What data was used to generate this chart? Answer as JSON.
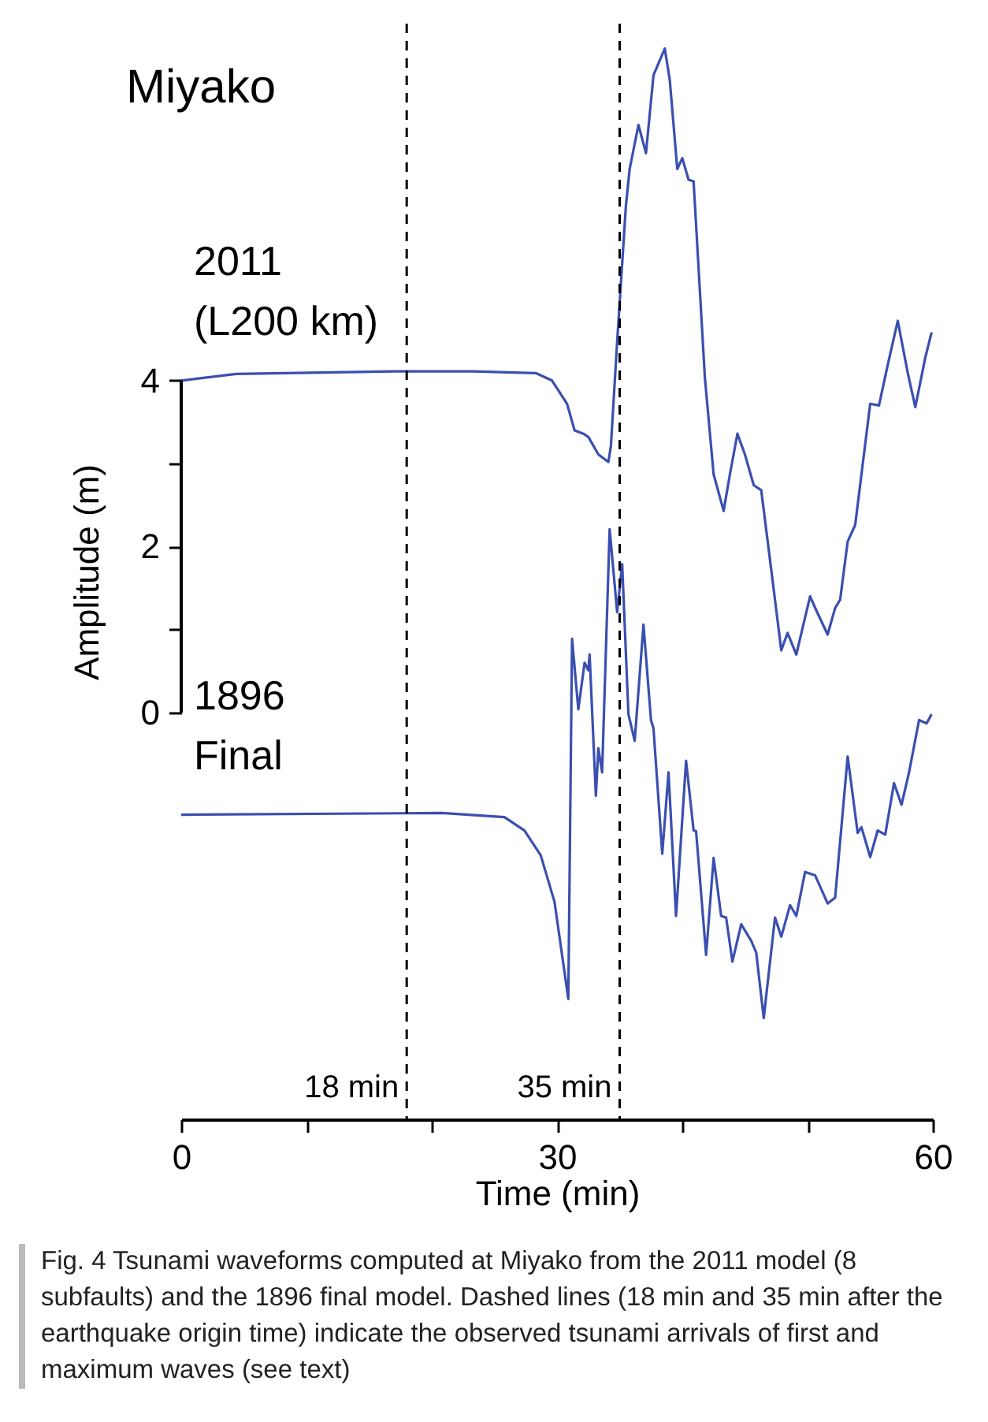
{
  "chart_data": {
    "type": "line",
    "xlabel": "Time (min)",
    "ylabel": "Amplitude (m)",
    "annotations": [
      "Miyako",
      {
        "text": "2011\n(L200 km)",
        "x": 0,
        "y": 4.0
      },
      {
        "text": "1896\nFinal",
        "x": 0,
        "y": -1.23
      },
      "Fig. 4  Tsunami waveforms computed at Miyako from the 2011 model (8 subfaults) and the 1896 final model. Dashed lines (18 min and 35 min after the earthquake origin time) indicate the observed tsunami arrivals of first and maximum waves (see text)"
    ],
    "xlim": [
      0,
      60
    ],
    "xticks": [
      0,
      {
        "value": 10,
        "label": null
      },
      {
        "value": 20,
        "label": null
      },
      30,
      {
        "value": 40,
        "label": null
      },
      {
        "value": 50,
        "label": null
      },
      60
    ],
    "ylim": [
      -4.9,
      8.3
    ],
    "yticks": [
      0,
      {
        "value": 1,
        "label": null
      },
      2,
      {
        "value": 3,
        "label": null
      },
      4
    ],
    "grid": false,
    "line_style": "solid",
    "marker": "none",
    "ref_lines": [
      {
        "axis": "x",
        "value": 18,
        "label": "18 min",
        "color": "#000000",
        "line_style": "dashed"
      },
      {
        "axis": "x",
        "value": 35,
        "label": "35 min",
        "color": "#000000",
        "line_style": "dashed"
      }
    ],
    "series": [
      {
        "color": "#3a4fb0",
        "x": [
          0,
          4.4,
          17.0,
          23.3,
          28.3,
          29.6,
          30.8,
          31.4,
          32.1,
          32.5,
          33.3,
          34.1,
          34.3,
          34.8,
          35.5,
          35.8,
          36.5,
          37.1,
          37.7,
          38.6,
          39.0,
          39.6,
          40.0,
          40.5,
          40.9,
          41.8,
          42.5,
          43.3,
          43.8,
          44.4,
          45.0,
          45.7,
          46.3,
          47.2,
          47.9,
          48.4,
          49.1,
          50.2,
          50.7,
          51.6,
          52.2,
          52.6,
          53.2,
          53.8,
          55.0,
          55.7,
          56.4,
          57.2,
          58.0,
          58.6,
          59.4,
          59.9
        ],
        "values": [
          4.0,
          4.08,
          4.11,
          4.11,
          4.09,
          4.0,
          3.72,
          3.4,
          3.36,
          3.32,
          3.11,
          3.02,
          3.21,
          4.47,
          6.11,
          6.55,
          7.08,
          6.74,
          7.68,
          8.0,
          7.62,
          6.55,
          6.68,
          6.42,
          6.4,
          4.04,
          2.87,
          2.43,
          2.87,
          3.36,
          3.11,
          2.74,
          2.68,
          1.6,
          0.75,
          0.96,
          0.7,
          1.4,
          1.23,
          0.94,
          1.26,
          1.36,
          2.06,
          2.26,
          3.72,
          3.7,
          4.19,
          4.72,
          4.09,
          3.68,
          4.28,
          4.58
        ]
      },
      {
        "color": "#3a4fb0",
        "x": [
          0,
          20.8,
          25.8,
          27.4,
          28.7,
          29.8,
          30.9,
          31.2,
          31.7,
          32.2,
          32.5,
          32.6,
          33.1,
          33.3,
          33.6,
          34.2,
          34.8,
          35.2,
          35.7,
          36.2,
          36.9,
          37.5,
          37.7,
          38.4,
          38.9,
          39.5,
          40.3,
          40.9,
          41.1,
          41.9,
          42.5,
          43.1,
          43.5,
          44.0,
          44.7,
          45.5,
          45.9,
          46.5,
          47.4,
          47.9,
          48.6,
          49.1,
          49.8,
          50.6,
          51.6,
          52.2,
          53.2,
          54.0,
          54.3,
          55.0,
          55.6,
          56.2,
          56.9,
          57.5,
          58.1,
          58.9,
          59.5,
          59.9
        ],
        "values": [
          -1.23,
          -1.21,
          -1.26,
          -1.42,
          -1.72,
          -2.28,
          -3.45,
          0.89,
          0.04,
          0.6,
          0.51,
          0.7,
          -1.0,
          -0.43,
          -0.72,
          2.21,
          1.21,
          1.79,
          -0.02,
          -0.34,
          1.06,
          -0.09,
          -0.19,
          -1.7,
          -0.72,
          -2.45,
          -0.58,
          -1.42,
          -1.43,
          -2.92,
          -1.75,
          -2.45,
          -2.47,
          -3.0,
          -2.55,
          -2.75,
          -2.89,
          -3.68,
          -2.47,
          -2.7,
          -2.32,
          -2.45,
          -1.92,
          -1.96,
          -2.3,
          -2.23,
          -0.53,
          -1.45,
          -1.38,
          -1.74,
          -1.42,
          -1.47,
          -0.85,
          -1.11,
          -0.72,
          -0.09,
          -0.13,
          -0.02
        ]
      }
    ]
  }
}
